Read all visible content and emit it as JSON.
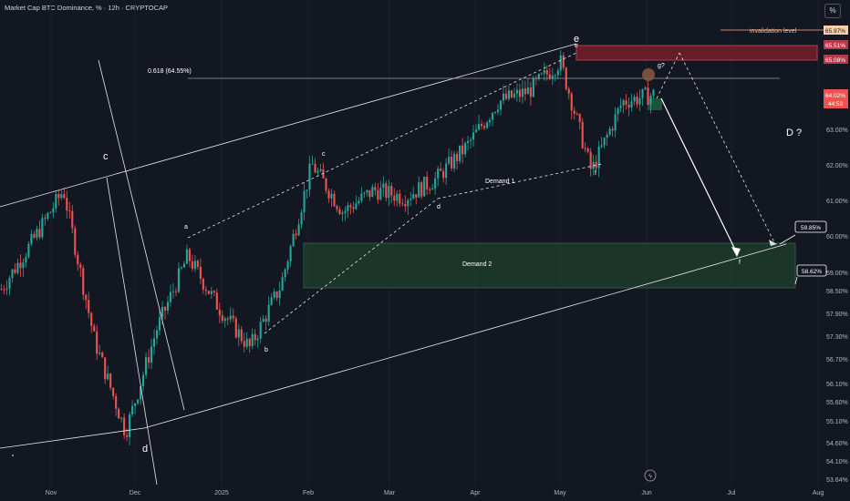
{
  "title": "Market Cap BTC Dominance, % · 12h · CRYPTOCAP",
  "percent_button": "%",
  "colors": {
    "background": "#131722",
    "up": "#26a69a",
    "down": "#ef5350",
    "demand_zone": "#1e3a2c",
    "supply_zone": "#7a1f2b",
    "lines": "#ffffff"
  },
  "chart_data": {
    "type": "candlestick",
    "title": "Market Cap BTC Dominance, % · 12h · CRYPTOCAP",
    "ylim": [
      53.5,
      66.4
    ],
    "y_ticks": [
      "53.64%",
      "54.10%",
      "54.60%",
      "55.10%",
      "55.60%",
      "56.10%",
      "56.70%",
      "57.30%",
      "57.90%",
      "58.50%",
      "59.00%",
      "60.00%",
      "61.00%",
      "62.00%",
      "63.00%",
      "64.02%",
      "44:53",
      "65.08%",
      "65.51%",
      "65.97%"
    ],
    "x_ticks": [
      "Nov",
      "Dec",
      "2025",
      "Feb",
      "Mar",
      "Apr",
      "May",
      "Jun",
      "Jul",
      "Aug"
    ],
    "price_path": [
      [
        "Nov",
        58.9
      ],
      [
        "mid-Nov",
        60.2
      ],
      [
        "late-Nov",
        61.6
      ],
      [
        "early-Dec",
        57.5
      ],
      [
        "Dec",
        55.0
      ],
      [
        "mid-Dec",
        57.8
      ],
      [
        "late-Dec",
        59.8
      ],
      [
        "2025",
        58.4
      ],
      [
        "mid-Jan",
        57.3
      ],
      [
        "late-Jan",
        59.0
      ],
      [
        "Feb",
        62.3
      ],
      [
        "mid-Feb",
        61.0
      ],
      [
        "late-Feb",
        61.6
      ],
      [
        "Mar",
        61.4
      ],
      [
        "mid-Mar",
        61.9
      ],
      [
        "Apr",
        62.8
      ],
      [
        "mid-Apr",
        64.0
      ],
      [
        "late-Apr",
        64.3
      ],
      [
        "May",
        65.1
      ],
      [
        "mid-May",
        62.1
      ],
      [
        "late-May",
        64.0
      ],
      [
        "Jun",
        64.2
      ]
    ],
    "horizontal_levels": [
      {
        "label": "invalidation level",
        "value": 65.97
      },
      {
        "label": "0.618 (64.55%)",
        "value": 64.55
      }
    ],
    "zones": [
      {
        "label": "Demand 2",
        "from": 58.62,
        "to": 59.85
      },
      {
        "label": "Demand 1",
        "value": 61.5
      },
      {
        "label": "supply",
        "from": 65.08,
        "to": 65.51
      }
    ],
    "wave_labels": [
      "a",
      "b",
      "c",
      "d",
      "e",
      "f",
      "g?",
      "D ?",
      "c",
      "d",
      "e",
      "f"
    ],
    "price_tags": {
      "invalidation": "65.97%",
      "zone_top": "65.51%",
      "zone_bottom": "65.08%",
      "current": "64.02%",
      "countdown": "44:53",
      "target_top": "59.85%",
      "target_bottom": "58.62%"
    }
  },
  "annotations": {
    "fib": "0.618 (64.55%)",
    "invalidation": "invalidation level",
    "demand1": "Demand 1",
    "demand2": "Demand 2",
    "d_question": "D ?",
    "c_big": "c",
    "d_big": "d",
    "e_big": "e",
    "a_small": "a",
    "b_small": "b",
    "c_small": "c",
    "d_small": "d",
    "f_small": "f",
    "g_small": "g?",
    "f_target": "f"
  }
}
